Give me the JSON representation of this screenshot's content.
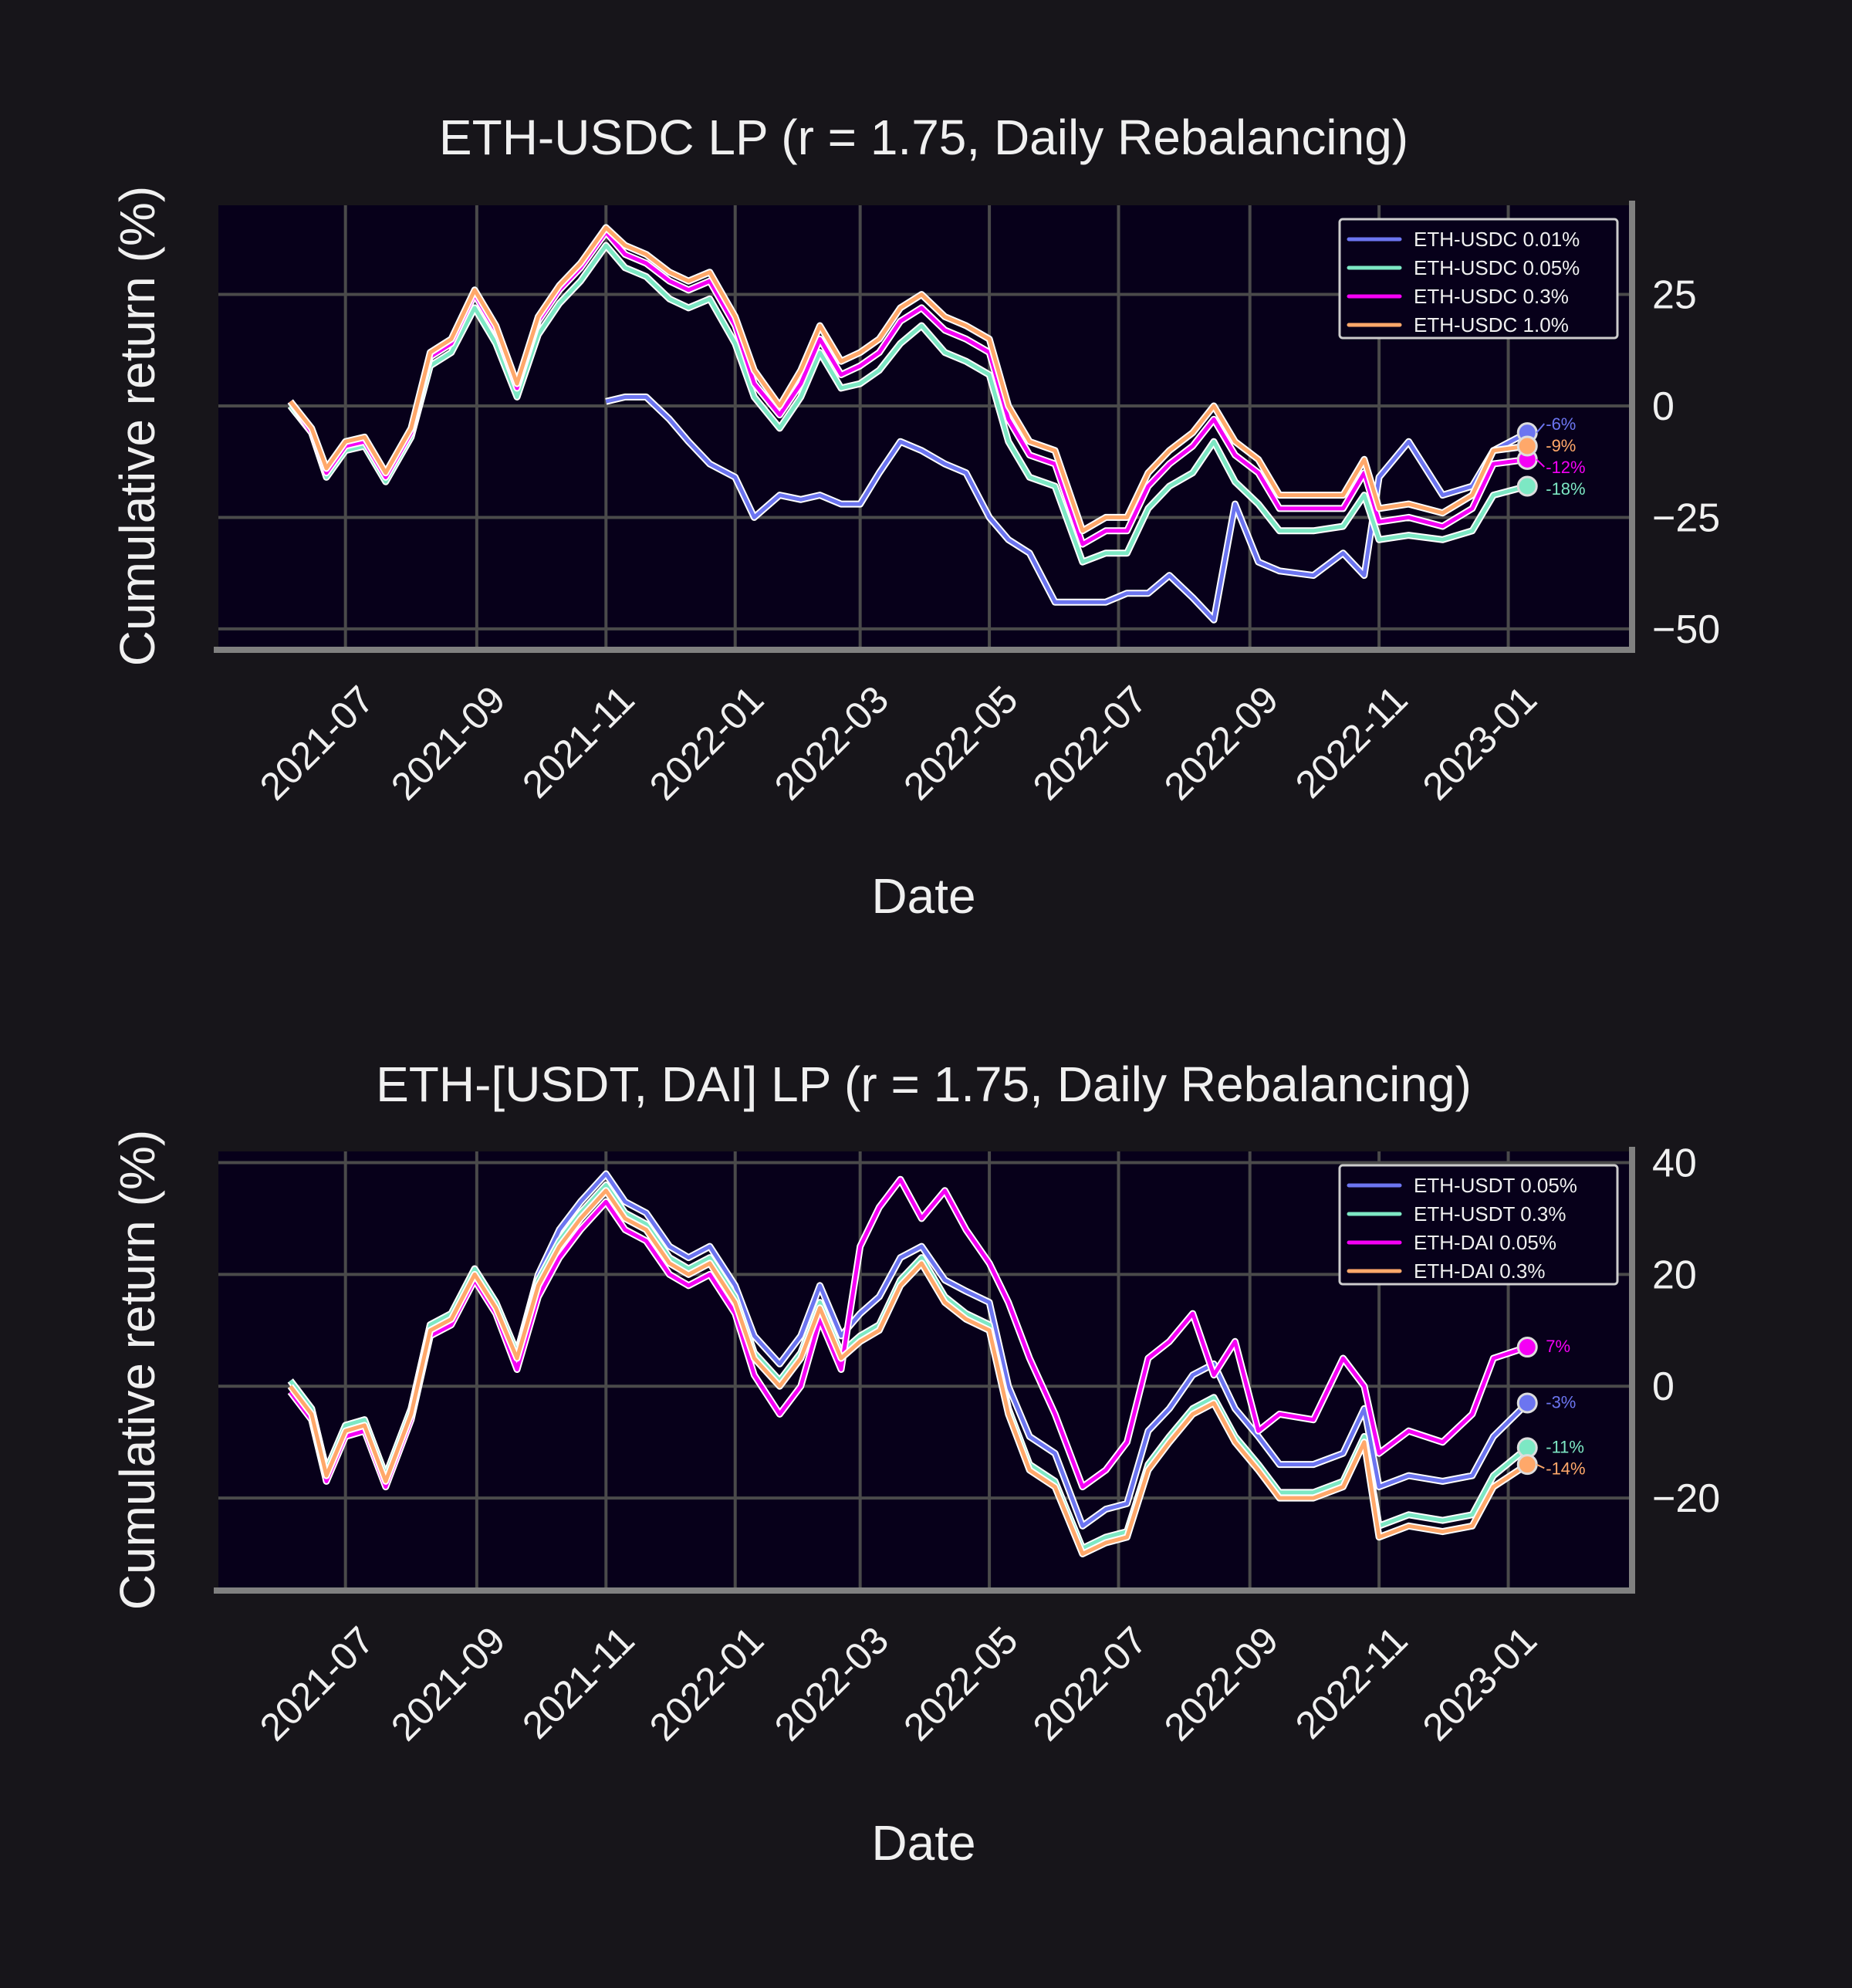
{
  "colors": {
    "figure_bg": "#17151a",
    "axes_bg": "#07001a",
    "grid": "#4a4a4a",
    "spine": "#808080",
    "text": "#f0f0f0"
  },
  "chart_data": [
    {
      "type": "line",
      "title": "ETH-USDC LP (r = 1.75, Daily Rebalancing)",
      "xlabel": "Date",
      "ylabel": "Cumulative return (%)",
      "xlim": [
        "2021-05-02",
        "2023-02-27"
      ],
      "ylim": [
        -54,
        45
      ],
      "yticks": [
        25,
        0,
        -25,
        -50
      ],
      "ytick_labels": [
        "25",
        "0",
        "−25",
        "−50"
      ],
      "xticks": [
        "2021-07",
        "2021-09",
        "2021-11",
        "2022-01",
        "2022-03",
        "2022-05",
        "2022-07",
        "2022-09",
        "2022-11",
        "2023-01"
      ],
      "grid": true,
      "legend_position": "upper-right",
      "x": [
        "2021-06-05",
        "2021-06-15",
        "2021-06-22",
        "2021-07-01",
        "2021-07-10",
        "2021-07-20",
        "2021-08-01",
        "2021-08-10",
        "2021-08-20",
        "2021-08-31",
        "2021-09-10",
        "2021-09-20",
        "2021-09-30",
        "2021-10-10",
        "2021-10-20",
        "2021-11-01",
        "2021-11-10",
        "2021-11-20",
        "2021-12-01",
        "2021-12-10",
        "2021-12-20",
        "2022-01-01",
        "2022-01-10",
        "2022-01-22",
        "2022-02-01",
        "2022-02-10",
        "2022-02-20",
        "2022-03-01",
        "2022-03-10",
        "2022-03-20",
        "2022-03-30",
        "2022-04-10",
        "2022-04-20",
        "2022-05-01",
        "2022-05-10",
        "2022-05-20",
        "2022-06-01",
        "2022-06-14",
        "2022-06-25",
        "2022-07-05",
        "2022-07-15",
        "2022-07-25",
        "2022-08-05",
        "2022-08-15",
        "2022-08-25",
        "2022-09-05",
        "2022-09-15",
        "2022-10-01",
        "2022-10-15",
        "2022-10-25",
        "2022-11-01",
        "2022-11-15",
        "2022-12-01",
        "2022-12-15",
        "2022-12-25",
        "2023-01-10"
      ],
      "series": [
        {
          "name": "ETH-USDC 0.01%",
          "color": "#6c75f0",
          "end_label": "-6%",
          "values": [
            null,
            null,
            null,
            null,
            null,
            null,
            null,
            null,
            null,
            null,
            null,
            null,
            null,
            null,
            null,
            1,
            2,
            2,
            -3,
            -8,
            -13,
            -16,
            -25,
            -20,
            -21,
            -20,
            -22,
            -22,
            -15,
            -8,
            -10,
            -13,
            -15,
            -25,
            -30,
            -33,
            -44,
            -44,
            -44,
            -42,
            -42,
            -38,
            -43,
            -48,
            -22,
            -35,
            -37,
            -38,
            -33,
            -38,
            -16,
            -8,
            -20,
            -18,
            -10,
            -6
          ]
        },
        {
          "name": "ETH-USDC 0.05%",
          "color": "#7de8c4",
          "end_label": "-18%",
          "values": [
            0,
            -6,
            -16,
            -10,
            -9,
            -17,
            -7,
            9,
            12,
            22,
            14,
            2,
            16,
            23,
            28,
            36,
            31,
            29,
            24,
            22,
            24,
            14,
            2,
            -5,
            2,
            12,
            4,
            5,
            8,
            14,
            18,
            12,
            10,
            7,
            -8,
            -16,
            -18,
            -35,
            -33,
            -33,
            -23,
            -18,
            -15,
            -8,
            -17,
            -22,
            -28,
            -28,
            -27,
            -20,
            -30,
            -29,
            -30,
            -28,
            -20,
            -18
          ]
        },
        {
          "name": "ETH-USDC 0.3%",
          "color": "#f500f5",
          "end_label": "-12%",
          "values": [
            1,
            -6,
            -15,
            -9,
            -8,
            -16,
            -6,
            11,
            14,
            25,
            17,
            4,
            19,
            26,
            31,
            39,
            34,
            32,
            28,
            26,
            28,
            18,
            5,
            -2,
            5,
            15,
            7,
            9,
            12,
            19,
            22,
            17,
            15,
            12,
            -3,
            -11,
            -13,
            -31,
            -28,
            -28,
            -18,
            -13,
            -9,
            -3,
            -11,
            -15,
            -23,
            -23,
            -23,
            -15,
            -26,
            -25,
            -27,
            -23,
            -13,
            -12
          ]
        },
        {
          "name": "ETH-USDC 1.0%",
          "color": "#ffa86a",
          "end_label": "-9%",
          "values": [
            1,
            -5,
            -14,
            -8,
            -7,
            -15,
            -5,
            12,
            15,
            26,
            18,
            5,
            20,
            27,
            32,
            40,
            36,
            34,
            30,
            28,
            30,
            20,
            8,
            0,
            8,
            18,
            10,
            12,
            15,
            22,
            25,
            20,
            18,
            15,
            0,
            -8,
            -10,
            -28,
            -25,
            -25,
            -15,
            -10,
            -6,
            0,
            -8,
            -12,
            -20,
            -20,
            -20,
            -12,
            -23,
            -22,
            -24,
            -20,
            -10,
            -9
          ]
        }
      ]
    },
    {
      "type": "line",
      "title": "ETH-[USDT, DAI] LP (r = 1.75, Daily Rebalancing)",
      "xlabel": "Date",
      "ylabel": "Cumulative return (%)",
      "xlim": [
        "2021-05-02",
        "2023-02-27"
      ],
      "ylim": [
        -36,
        42
      ],
      "yticks": [
        40,
        20,
        0,
        -20
      ],
      "ytick_labels": [
        "40",
        "20",
        "0",
        "−20"
      ],
      "xticks": [
        "2021-07",
        "2021-09",
        "2021-11",
        "2022-01",
        "2022-03",
        "2022-05",
        "2022-07",
        "2022-09",
        "2022-11",
        "2023-01"
      ],
      "grid": true,
      "legend_position": "upper-right",
      "x": [
        "2021-06-05",
        "2021-06-15",
        "2021-06-22",
        "2021-07-01",
        "2021-07-10",
        "2021-07-20",
        "2021-08-01",
        "2021-08-10",
        "2021-08-20",
        "2021-08-31",
        "2021-09-10",
        "2021-09-20",
        "2021-09-30",
        "2021-10-10",
        "2021-10-20",
        "2021-11-01",
        "2021-11-10",
        "2021-11-20",
        "2021-12-01",
        "2021-12-10",
        "2021-12-20",
        "2022-01-01",
        "2022-01-10",
        "2022-01-22",
        "2022-02-01",
        "2022-02-10",
        "2022-02-20",
        "2022-03-01",
        "2022-03-10",
        "2022-03-20",
        "2022-03-30",
        "2022-04-10",
        "2022-04-20",
        "2022-05-01",
        "2022-05-10",
        "2022-05-20",
        "2022-06-01",
        "2022-06-14",
        "2022-06-25",
        "2022-07-05",
        "2022-07-15",
        "2022-07-25",
        "2022-08-05",
        "2022-08-15",
        "2022-08-25",
        "2022-09-05",
        "2022-09-15",
        "2022-10-01",
        "2022-10-15",
        "2022-10-25",
        "2022-11-01",
        "2022-11-15",
        "2022-12-01",
        "2022-12-15",
        "2022-12-25",
        "2023-01-10"
      ],
      "series": [
        {
          "name": "ETH-USDT 0.05%",
          "color": "#6c75f0",
          "end_label": "-3%",
          "values": [
            1,
            -4,
            -15,
            -7,
            -6,
            -16,
            -4,
            11,
            13,
            21,
            15,
            6,
            20,
            28,
            33,
            38,
            33,
            31,
            25,
            23,
            25,
            18,
            9,
            4,
            9,
            18,
            9,
            13,
            16,
            23,
            25,
            19,
            17,
            15,
            0,
            -9,
            -12,
            -25,
            -22,
            -21,
            -8,
            -4,
            2,
            4,
            -4,
            -9,
            -14,
            -14,
            -12,
            -4,
            -18,
            -16,
            -17,
            -16,
            -9,
            -3
          ]
        },
        {
          "name": "ETH-USDT 0.3%",
          "color": "#7de8c4",
          "end_label": "-11%",
          "values": [
            1,
            -4,
            -15,
            -7,
            -6,
            -16,
            -4,
            11,
            13,
            21,
            15,
            6,
            19,
            26,
            31,
            36,
            31,
            29,
            23,
            21,
            23,
            16,
            6,
            1,
            6,
            15,
            6,
            9,
            11,
            19,
            23,
            16,
            13,
            11,
            -4,
            -14,
            -17,
            -29,
            -27,
            -26,
            -14,
            -9,
            -4,
            -2,
            -9,
            -14,
            -19,
            -19,
            -17,
            -9,
            -25,
            -23,
            -24,
            -23,
            -16,
            -11
          ]
        },
        {
          "name": "ETH-DAI 0.05%",
          "color": "#f500f5",
          "end_label": "7%",
          "values": [
            -1,
            -6,
            -17,
            -9,
            -8,
            -18,
            -6,
            9,
            11,
            19,
            13,
            3,
            16,
            23,
            28,
            33,
            28,
            26,
            20,
            18,
            20,
            13,
            2,
            -5,
            0,
            12,
            3,
            25,
            32,
            37,
            30,
            35,
            28,
            22,
            15,
            5,
            -5,
            -18,
            -15,
            -10,
            5,
            8,
            13,
            2,
            8,
            -8,
            -5,
            -6,
            5,
            0,
            -12,
            -8,
            -10,
            -5,
            5,
            7
          ]
        },
        {
          "name": "ETH-DAI 0.3%",
          "color": "#ffa86a",
          "end_label": "-14%",
          "values": [
            0,
            -5,
            -16,
            -8,
            -7,
            -17,
            -5,
            10,
            12,
            20,
            14,
            5,
            18,
            25,
            30,
            35,
            30,
            28,
            22,
            20,
            22,
            15,
            5,
            0,
            5,
            14,
            5,
            8,
            10,
            18,
            22,
            15,
            12,
            10,
            -5,
            -15,
            -18,
            -30,
            -28,
            -27,
            -15,
            -10,
            -5,
            -3,
            -10,
            -15,
            -20,
            -20,
            -18,
            -10,
            -27,
            -25,
            -26,
            -25,
            -18,
            -14
          ]
        }
      ]
    }
  ]
}
